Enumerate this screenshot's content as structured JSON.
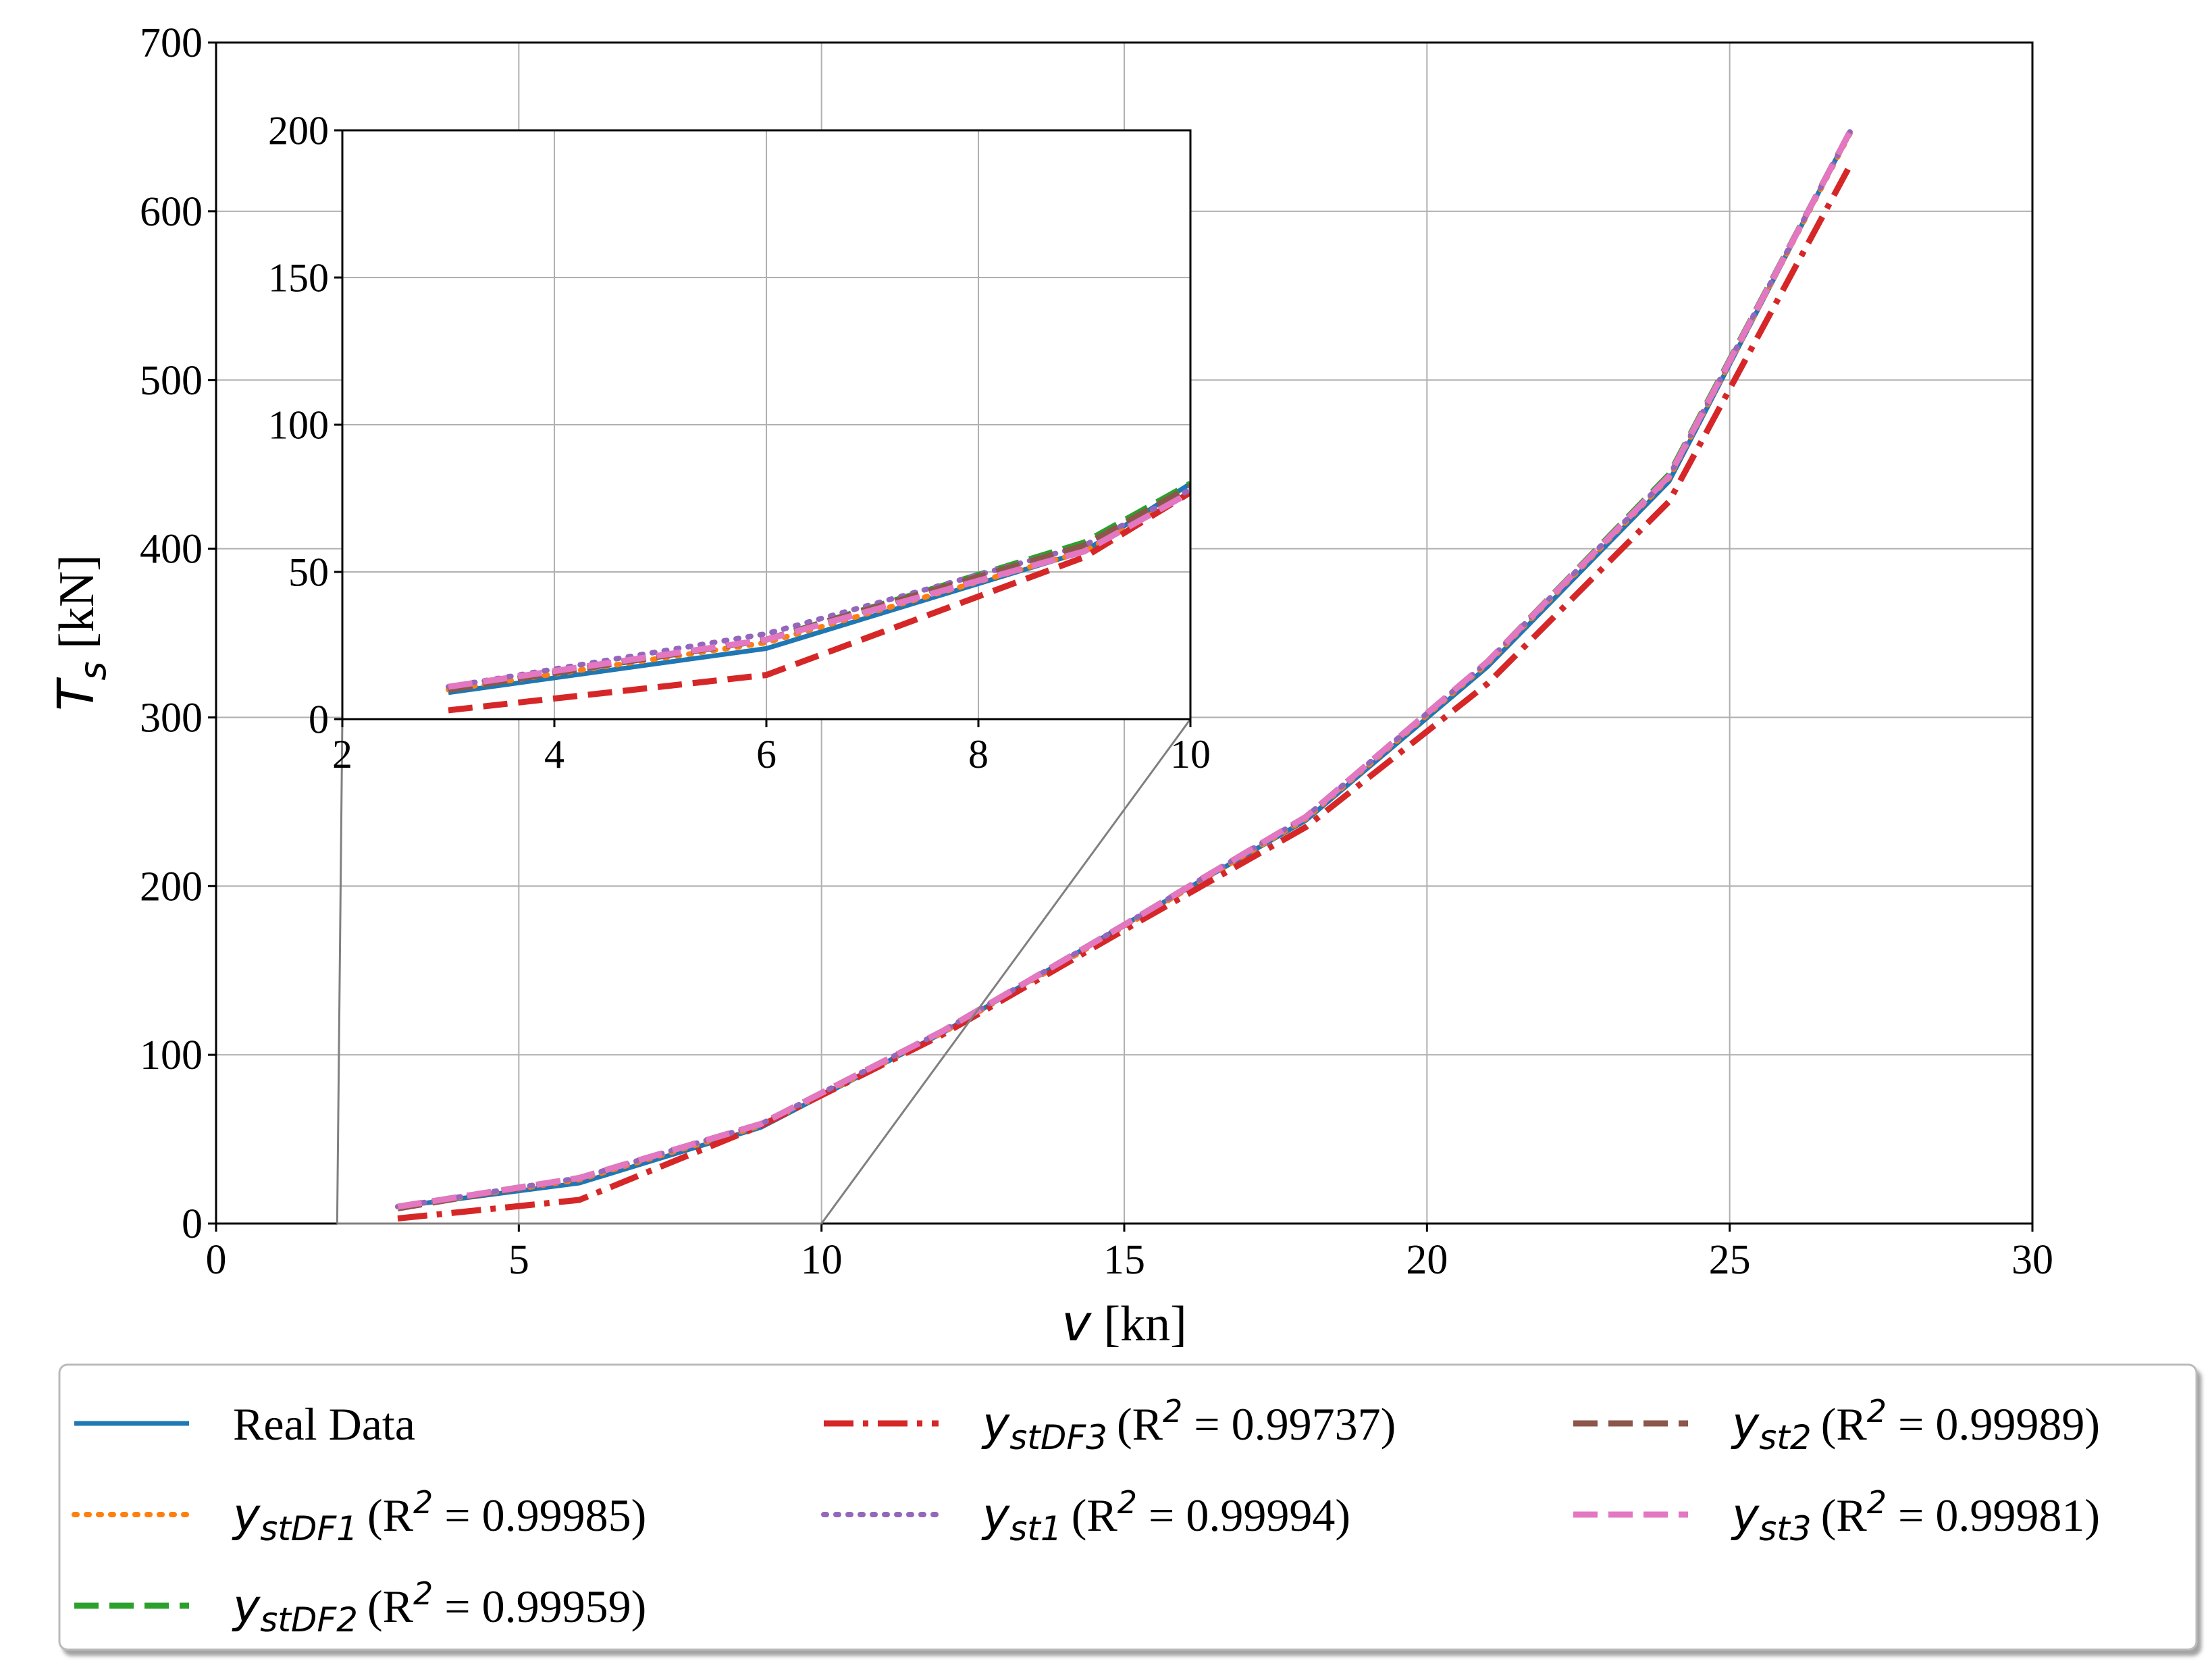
{
  "chart_data": [
    {
      "id": "main",
      "type": "line",
      "xlabel": {
        "symbol": "v",
        "unit": " [kn]"
      },
      "ylabel": {
        "symbol": "T",
        "subscript": "s",
        "unit": " [kN]"
      },
      "xlim": [
        0,
        30
      ],
      "ylim": [
        0,
        700
      ],
      "xticks": [
        0,
        5,
        10,
        15,
        20,
        25,
        30
      ],
      "yticks": [
        0,
        100,
        200,
        300,
        400,
        500,
        600,
        700
      ],
      "grid": true,
      "x": [
        3,
        6,
        9,
        12,
        15,
        18,
        21,
        24,
        27
      ],
      "series": [
        {
          "name": "Real Data",
          "color": "#1f77b4",
          "style": "solid",
          "values": [
            10,
            24,
            57,
            113,
            177,
            239,
            330,
            440,
            648
          ]
        },
        {
          "name": "y_stDF1",
          "color": "#ff7f0e",
          "style": "dotted",
          "values": [
            10,
            26,
            58,
            113,
            176,
            240,
            332,
            442,
            647
          ]
        },
        {
          "name": "y_stDF2",
          "color": "#2ca02c",
          "style": "dashed",
          "values": [
            10,
            27,
            59,
            114,
            177,
            241,
            333,
            444,
            648
          ]
        },
        {
          "name": "y_stDF3",
          "color": "#d62728",
          "style": "dashdot",
          "values": [
            3,
            14,
            58,
            112,
            174,
            235,
            320,
            428,
            628
          ]
        },
        {
          "name": "y_st1",
          "color": "#9467bd",
          "style": "dotted",
          "values": [
            10,
            27,
            59,
            114,
            177,
            241,
            333,
            443,
            648
          ]
        },
        {
          "name": "y_st2",
          "color": "#8c564b",
          "style": "dashed",
          "values": [
            9,
            27,
            59,
            114,
            177,
            241,
            333,
            443,
            648
          ]
        },
        {
          "name": "y_st3",
          "color": "#e377c2",
          "style": "dashed",
          "values": [
            10,
            27,
            59,
            114,
            177,
            241,
            333,
            443,
            648
          ]
        }
      ]
    },
    {
      "id": "inset",
      "type": "line",
      "xlim": [
        2,
        10
      ],
      "ylim": [
        0,
        200
      ],
      "xticks": [
        2,
        4,
        6,
        8,
        10
      ],
      "yticks": [
        0,
        50,
        100,
        150,
        200
      ],
      "grid": true,
      "x": [
        3,
        6,
        9,
        10
      ],
      "series": [
        {
          "name": "Real Data",
          "color": "#1f77b4",
          "style": "solid",
          "values": [
            9,
            24,
            57,
            80
          ]
        },
        {
          "name": "y_stDF1",
          "color": "#ff7f0e",
          "style": "dotted",
          "values": [
            10,
            26,
            57,
            77
          ]
        },
        {
          "name": "y_stDF2",
          "color": "#2ca02c",
          "style": "dashed",
          "values": [
            10,
            27,
            60,
            80
          ]
        },
        {
          "name": "y_stDF3",
          "color": "#d62728",
          "style": "dashed",
          "values": [
            3,
            15,
            55,
            77
          ]
        },
        {
          "name": "y_st1",
          "color": "#9467bd",
          "style": "dotted",
          "values": [
            11,
            29,
            59,
            78
          ]
        },
        {
          "name": "y_st2",
          "color": "#8c564b",
          "style": "dashed",
          "values": [
            10,
            27,
            59,
            79
          ]
        },
        {
          "name": "y_st3",
          "color": "#e377c2",
          "style": "dashed",
          "values": [
            11,
            27,
            57,
            77
          ]
        }
      ]
    }
  ],
  "legend": {
    "placement": "below",
    "items": [
      {
        "label": "Real Data",
        "color": "#1f77b4",
        "style": "solid"
      },
      {
        "symbol": "y",
        "subscript": "stDF1",
        "r2_prefix": "(R",
        "r2_sup": "2",
        "r2_value": " = 0.99985)",
        "color": "#ff7f0e",
        "style": "dotted"
      },
      {
        "symbol": "y",
        "subscript": "stDF2",
        "r2_prefix": "(R",
        "r2_sup": "2",
        "r2_value": " = 0.99959)",
        "color": "#2ca02c",
        "style": "dashed"
      },
      {
        "symbol": "y",
        "subscript": "stDF3",
        "r2_prefix": "(R",
        "r2_sup": "2",
        "r2_value": " = 0.99737)",
        "color": "#d62728",
        "style": "dashdot"
      },
      {
        "symbol": "y",
        "subscript": "st1",
        "r2_prefix": "(R",
        "r2_sup": "2",
        "r2_value": " = 0.99994)",
        "color": "#9467bd",
        "style": "dotted"
      },
      {
        "symbol": "y",
        "subscript": "st2",
        "r2_prefix": "(R",
        "r2_sup": "2",
        "r2_value": " = 0.99989)",
        "color": "#8c564b",
        "style": "dashed"
      },
      {
        "symbol": "y",
        "subscript": "st3",
        "r2_prefix": "(R",
        "r2_sup": "2",
        "r2_value": " = 0.99981)",
        "color": "#e377c2",
        "style": "dashed"
      }
    ]
  }
}
